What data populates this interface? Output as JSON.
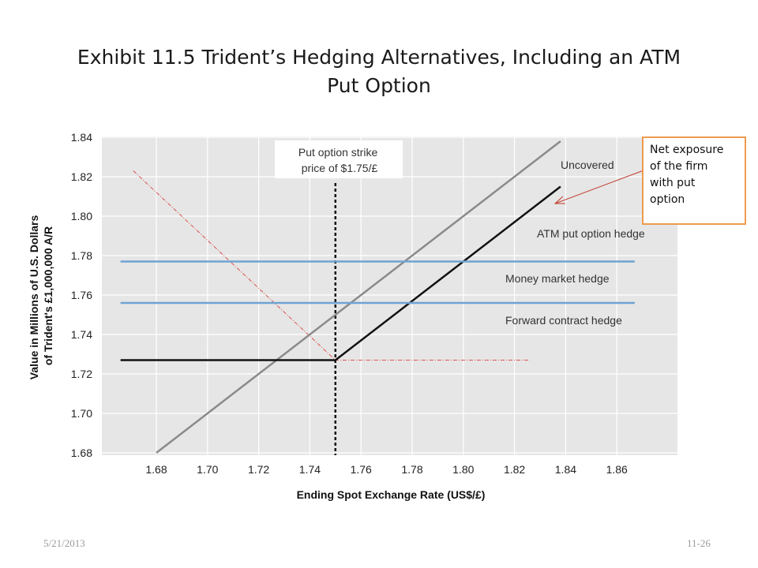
{
  "slide": {
    "title_lines": [
      "Exhibit 11.5  Trident’s Hedging Alternatives, Including an ATM",
      "Put Option"
    ],
    "footer_date": "5/21/2013",
    "footer_page": "11-26"
  },
  "callout": {
    "lines": [
      "Net exposure",
      "of the firm",
      "with put",
      "option"
    ],
    "color": "#ee9b4e",
    "arrow_color": "#c0392b"
  },
  "chart_data": {
    "type": "line",
    "xlabel": "Ending Spot Exchange Rate (US$/£)",
    "ylabel_lines": [
      "Value in Millions of U.S. Dollars",
      "of Trident's £1,000,000 A/R"
    ],
    "xlim": [
      1.666,
      1.867
    ],
    "ylim": [
      1.68,
      1.84
    ],
    "x_ticks": [
      "1.68",
      "1.70",
      "1.72",
      "1.74",
      "1.76",
      "1.78",
      "1.80",
      "1.82",
      "1.84",
      "1.86"
    ],
    "y_ticks": [
      "1.84",
      "1.82",
      "1.80",
      "1.78",
      "1.76",
      "1.74",
      "1.72",
      "1.70",
      "1.68"
    ],
    "grid": true,
    "background": "#e6e6e6",
    "strike": {
      "x": 1.75,
      "label_lines": [
        "Put option strike",
        "price of $1.75/£"
      ]
    },
    "series": [
      {
        "name": "Uncovered",
        "color": "#8a8a8a",
        "points": [
          [
            1.68,
            1.68
          ],
          [
            1.838,
            1.838
          ]
        ]
      },
      {
        "name": "ATM put option hedge",
        "color": "#111111",
        "points": [
          [
            1.666,
            1.727
          ],
          [
            1.75,
            1.727
          ],
          [
            1.838,
            1.815
          ]
        ]
      },
      {
        "name": "Money market hedge",
        "color": "#6fa3d2",
        "points": [
          [
            1.666,
            1.777
          ],
          [
            1.867,
            1.777
          ]
        ]
      },
      {
        "name": "Forward contract hedge",
        "color": "#6fa3d2",
        "points": [
          [
            1.666,
            1.756
          ],
          [
            1.867,
            1.756
          ]
        ]
      }
    ],
    "annotation_lines": [
      {
        "color": "#d9534f",
        "points": [
          [
            1.671,
            1.823
          ],
          [
            1.75,
            1.727
          ],
          [
            1.826,
            1.727
          ]
        ]
      }
    ],
    "line_labels": [
      "Uncovered",
      "ATM put option hedge",
      "Money market hedge",
      "Forward contract hedge"
    ]
  }
}
